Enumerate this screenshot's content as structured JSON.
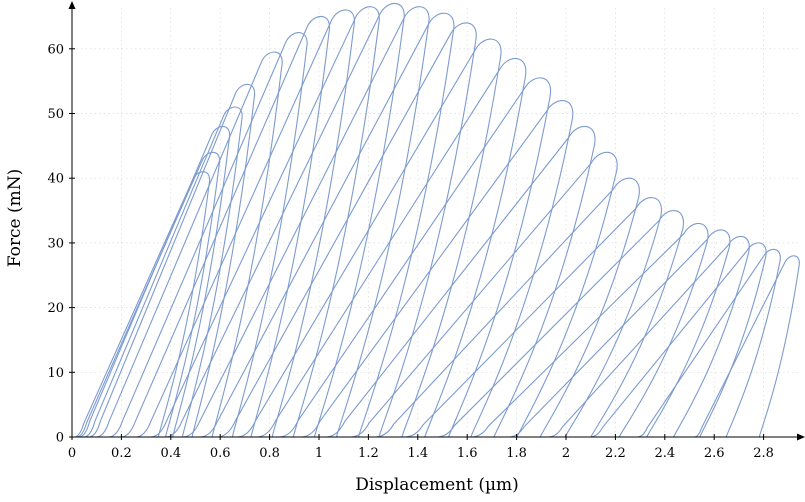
{
  "chart_data": {
    "type": "line",
    "title": "",
    "xlabel": "Displacement (µm)",
    "ylabel": "Force (mN)",
    "xlim": [
      0,
      2.95
    ],
    "ylim": [
      0,
      67
    ],
    "grid": true,
    "x_ticks": [
      0,
      0.2,
      0.4,
      0.6,
      0.8,
      1,
      1.2,
      1.4,
      1.6,
      1.8,
      2,
      2.2,
      2.4,
      2.6,
      2.8
    ],
    "x_tick_labels": [
      "0",
      "0.2",
      "0.4",
      "0.6",
      "0.8",
      "1",
      "1.2",
      "1.4",
      "1.6",
      "1.8",
      "2",
      "2.2",
      "2.4",
      "2.6",
      "2.8"
    ],
    "y_ticks": [
      0,
      10,
      20,
      30,
      40,
      50,
      60
    ],
    "y_tick_labels": [
      "0",
      "10",
      "20",
      "30",
      "40",
      "50",
      "60"
    ],
    "cycles_description": "loading-unloading cycles, each with start displacement x0, peak displacement xp and peak force fp",
    "cycles": [
      {
        "x0": 0.01,
        "xp": 0.54,
        "fp": 41
      },
      {
        "x0": 0.02,
        "xp": 0.58,
        "fp": 44
      },
      {
        "x0": 0.03,
        "xp": 0.62,
        "fp": 48
      },
      {
        "x0": 0.05,
        "xp": 0.67,
        "fp": 51
      },
      {
        "x0": 0.07,
        "xp": 0.72,
        "fp": 54.5
      },
      {
        "x0": 0.1,
        "xp": 0.83,
        "fp": 59.5
      },
      {
        "x0": 0.15,
        "xp": 0.93,
        "fp": 62.5
      },
      {
        "x0": 0.2,
        "xp": 1.02,
        "fp": 65
      },
      {
        "x0": 0.26,
        "xp": 1.12,
        "fp": 66
      },
      {
        "x0": 0.32,
        "xp": 1.22,
        "fp": 66.5
      },
      {
        "x0": 0.38,
        "xp": 1.32,
        "fp": 67
      },
      {
        "x0": 0.45,
        "xp": 1.42,
        "fp": 66.5
      },
      {
        "x0": 0.52,
        "xp": 1.52,
        "fp": 65.5
      },
      {
        "x0": 0.59,
        "xp": 1.61,
        "fp": 64
      },
      {
        "x0": 0.67,
        "xp": 1.71,
        "fp": 61.5
      },
      {
        "x0": 0.75,
        "xp": 1.81,
        "fp": 58.5
      },
      {
        "x0": 0.84,
        "xp": 1.91,
        "fp": 55.5
      },
      {
        "x0": 0.93,
        "xp": 2.0,
        "fp": 52
      },
      {
        "x0": 1.03,
        "xp": 2.09,
        "fp": 48
      },
      {
        "x0": 1.13,
        "xp": 2.18,
        "fp": 44
      },
      {
        "x0": 1.23,
        "xp": 2.27,
        "fp": 40
      },
      {
        "x0": 1.35,
        "xp": 2.36,
        "fp": 37
      },
      {
        "x0": 1.48,
        "xp": 2.45,
        "fp": 35
      },
      {
        "x0": 1.62,
        "xp": 2.55,
        "fp": 33
      },
      {
        "x0": 1.77,
        "xp": 2.64,
        "fp": 32
      },
      {
        "x0": 1.93,
        "xp": 2.72,
        "fp": 31
      },
      {
        "x0": 2.1,
        "xp": 2.79,
        "fp": 30
      },
      {
        "x0": 2.29,
        "xp": 2.85,
        "fp": 29
      },
      {
        "x0": 2.52,
        "xp": 2.93,
        "fp": 28
      }
    ]
  }
}
